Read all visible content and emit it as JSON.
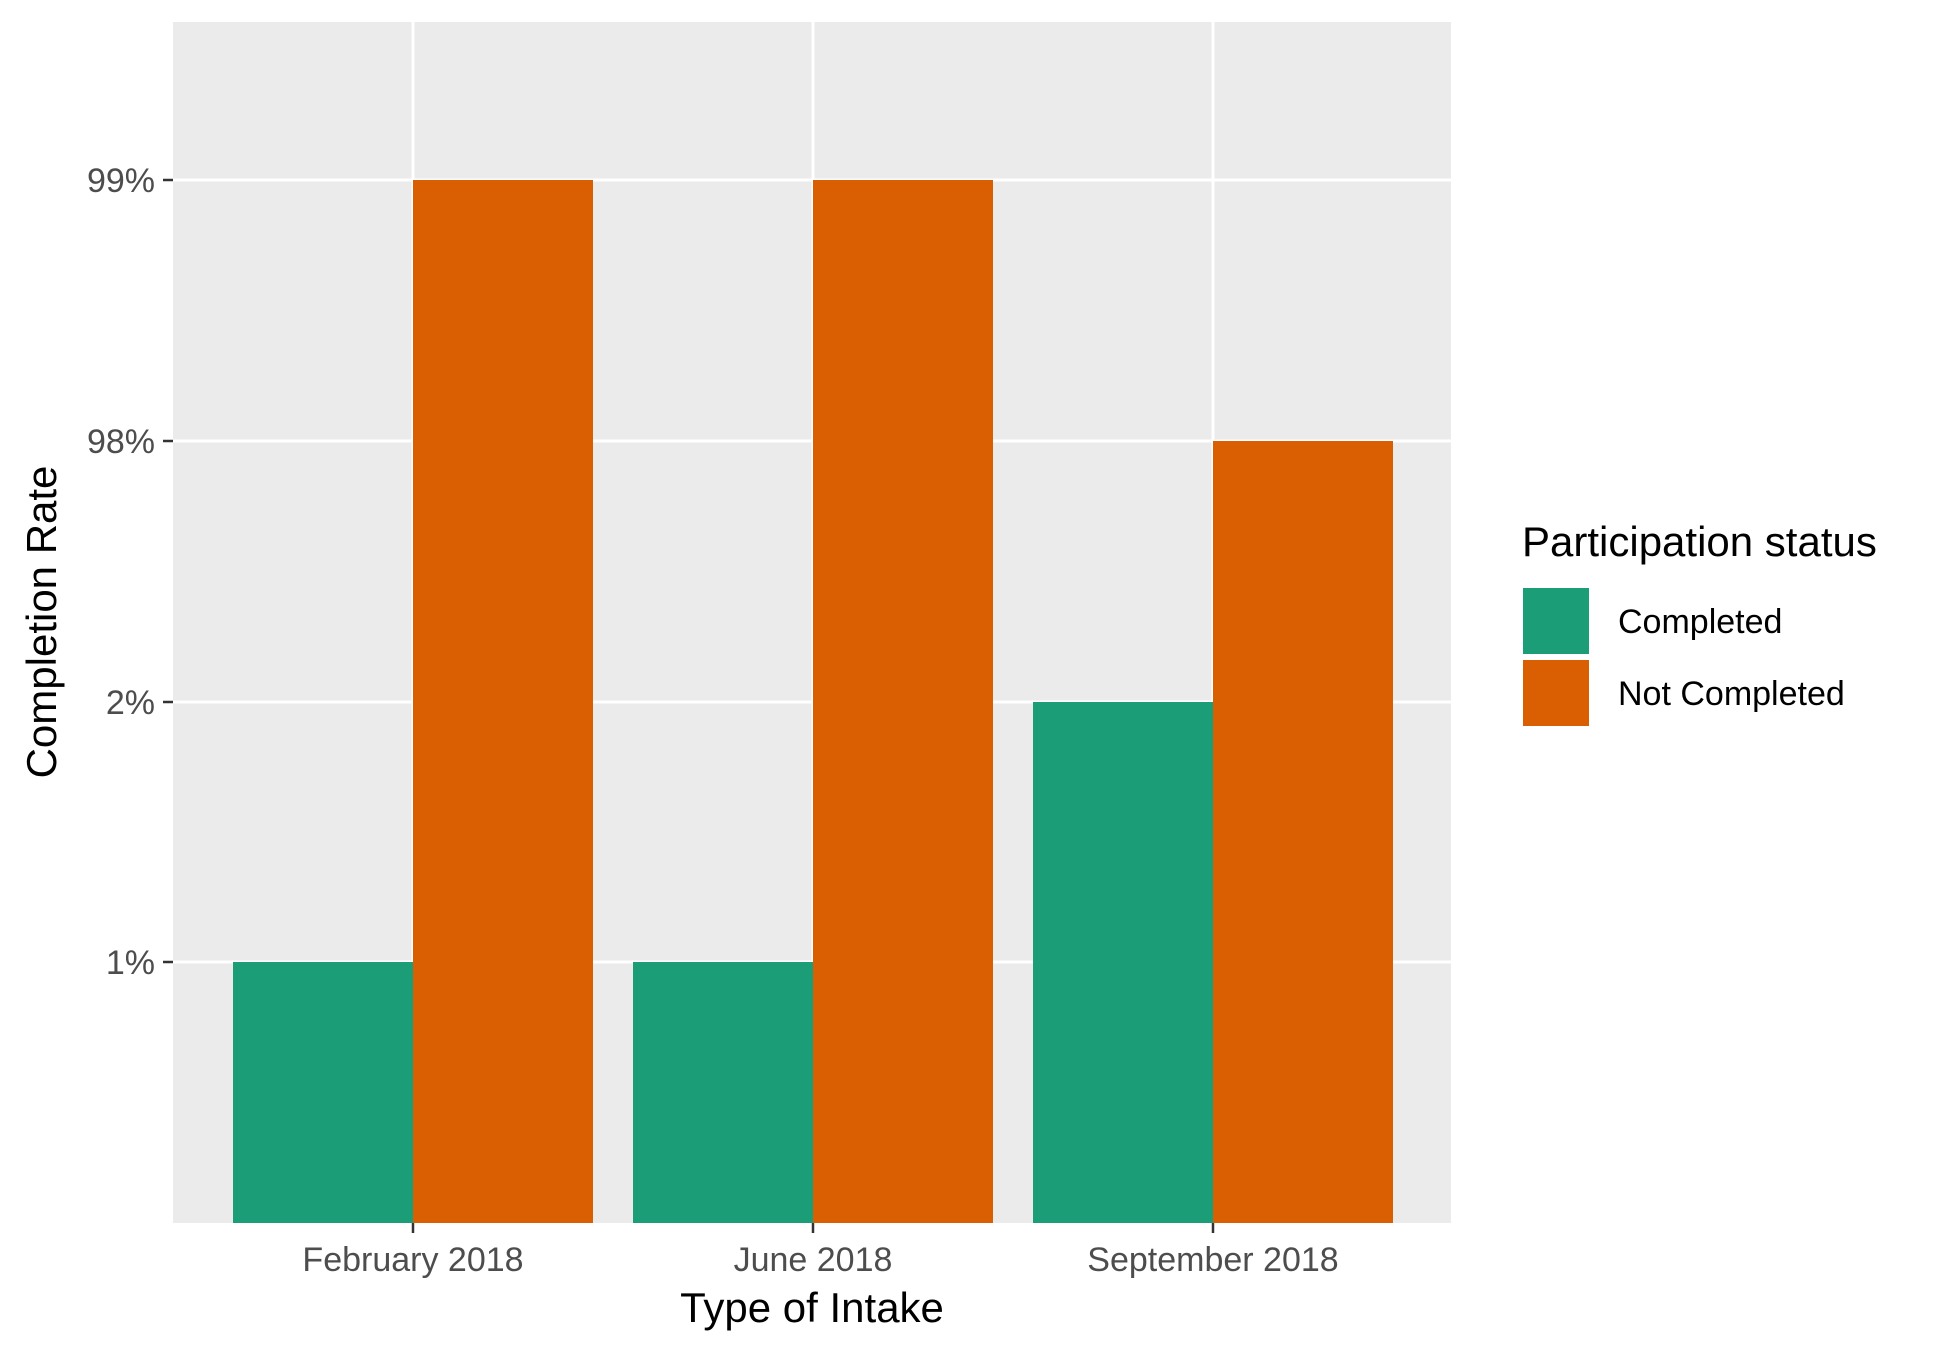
{
  "chart_data": {
    "type": "bar",
    "title": "",
    "xlabel": "Type of Intake",
    "ylabel": "Completion Rate",
    "categories": [
      "February 2018",
      "June 2018",
      "September 2018"
    ],
    "y_ticks": [
      "1%",
      "2%",
      "98%",
      "99%"
    ],
    "series": [
      {
        "name": "Completed",
        "values": [
          "1%",
          "1%",
          "2%"
        ],
        "color": "#1b9e77"
      },
      {
        "name": "Not Completed",
        "values": [
          "99%",
          "99%",
          "98%"
        ],
        "color": "#d95f02"
      }
    ],
    "grid": true,
    "legend": {
      "title": "Participation status",
      "placement": "right"
    },
    "colors": {
      "panel": "#ebebeb",
      "gridline": "#ffffff",
      "tick_text": "#4d4d4d",
      "axis_tick": "#333333"
    }
  }
}
